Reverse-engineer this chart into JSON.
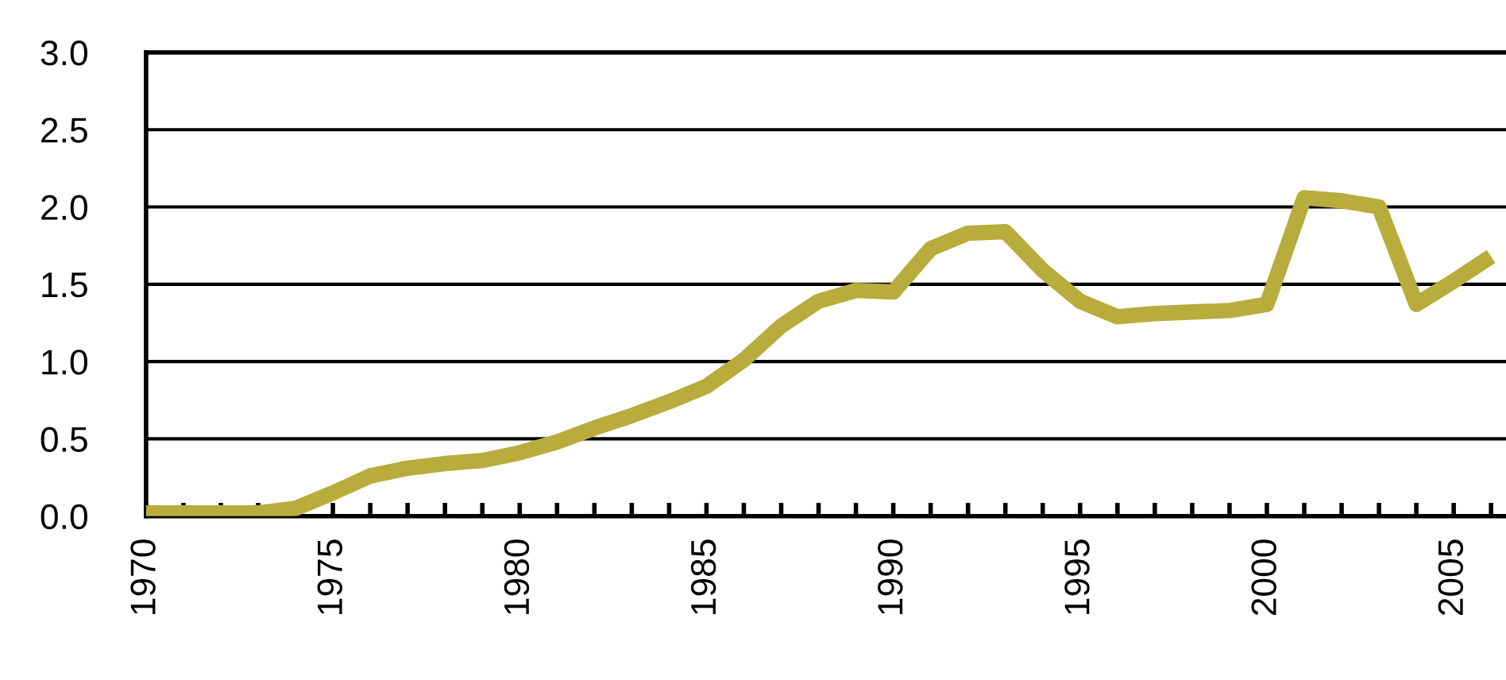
{
  "chart_data": {
    "type": "line",
    "x": [
      1970,
      1971,
      1972,
      1973,
      1974,
      1975,
      1976,
      1977,
      1978,
      1979,
      1980,
      1981,
      1982,
      1983,
      1984,
      1985,
      1986,
      1987,
      1988,
      1989,
      1990,
      1991,
      1992,
      1993,
      1994,
      1995,
      1996,
      1997,
      1998,
      1999,
      2000,
      2001,
      2002,
      2003,
      2004,
      2005,
      2006
    ],
    "series": [
      {
        "color": "#b8ac3c",
        "values": [
          0.02,
          0.02,
          0.02,
          0.02,
          0.05,
          0.15,
          0.26,
          0.31,
          0.34,
          0.36,
          0.41,
          0.48,
          0.57,
          0.65,
          0.74,
          0.84,
          1.01,
          1.23,
          1.39,
          1.46,
          1.45,
          1.73,
          1.83,
          1.84,
          1.59,
          1.39,
          1.29,
          1.31,
          1.32,
          1.33,
          1.37,
          2.06,
          2.04,
          2.0,
          1.37,
          1.52,
          1.68
        ]
      }
    ],
    "xlim": [
      1970,
      2006.4
    ],
    "xticks": [
      1970,
      {
        "value": 1971,
        "label": null
      },
      {
        "value": 1972,
        "label": null
      },
      {
        "value": 1973,
        "label": null
      },
      {
        "value": 1974,
        "label": null
      },
      1975,
      {
        "value": 1976,
        "label": null
      },
      {
        "value": 1977,
        "label": null
      },
      {
        "value": 1978,
        "label": null
      },
      {
        "value": 1979,
        "label": null
      },
      1980,
      {
        "value": 1981,
        "label": null
      },
      {
        "value": 1982,
        "label": null
      },
      {
        "value": 1983,
        "label": null
      },
      {
        "value": 1984,
        "label": null
      },
      1985,
      {
        "value": 1986,
        "label": null
      },
      {
        "value": 1987,
        "label": null
      },
      {
        "value": 1988,
        "label": null
      },
      {
        "value": 1989,
        "label": null
      },
      1990,
      {
        "value": 1991,
        "label": null
      },
      {
        "value": 1992,
        "label": null
      },
      {
        "value": 1993,
        "label": null
      },
      {
        "value": 1994,
        "label": null
      },
      1995,
      {
        "value": 1996,
        "label": null
      },
      {
        "value": 1997,
        "label": null
      },
      {
        "value": 1998,
        "label": null
      },
      {
        "value": 1999,
        "label": null
      },
      2000,
      {
        "value": 2001,
        "label": null
      },
      {
        "value": 2002,
        "label": null
      },
      {
        "value": 2003,
        "label": null
      },
      {
        "value": 2004,
        "label": null
      },
      2005,
      {
        "value": 2006,
        "label": null
      }
    ],
    "ylim": [
      0,
      3
    ],
    "yticks": [
      {
        "value": 0,
        "label": "0.0"
      },
      {
        "value": 0.5,
        "label": "0.5"
      },
      {
        "value": 1,
        "label": "1.0"
      },
      {
        "value": 1.5,
        "label": "1.5"
      },
      {
        "value": 2,
        "label": "2.0"
      },
      {
        "value": 2.5,
        "label": "2.5"
      },
      {
        "value": 3,
        "label": "3.0"
      }
    ],
    "grid": "y",
    "legend": false,
    "marker": "none",
    "line_style": "solid"
  }
}
